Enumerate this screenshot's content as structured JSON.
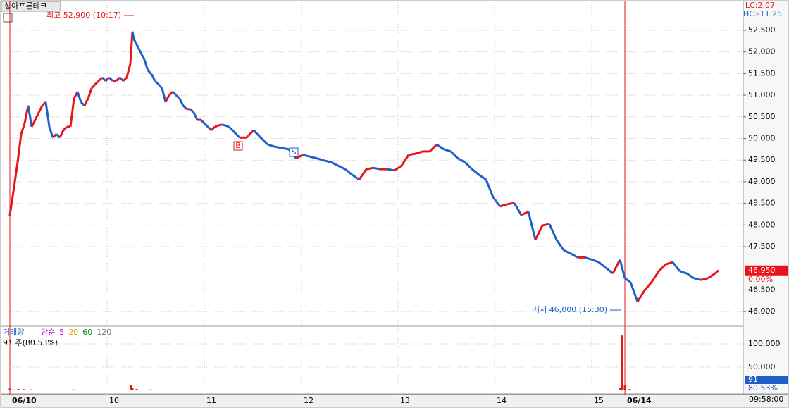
{
  "chart_data": [
    {
      "type": "line",
      "title": "상아프론테크",
      "lc_label": "LC:2.07",
      "hc_label": "HC:-11.25",
      "annotations": [
        "최고 52,900 (10:17)",
        "최저 46,000 (15:30)"
      ],
      "signals": [
        "B",
        "S"
      ],
      "last_price": {
        "value": 46950,
        "label": "46,950"
      },
      "change_label": "0.00%",
      "up_color": "#e8141a",
      "down_color": "#1f5fc8",
      "x": [
        0,
        6,
        11,
        16,
        21,
        26,
        31,
        36,
        41,
        46,
        51,
        56,
        61,
        66,
        71,
        76,
        81,
        86,
        91,
        96,
        101,
        106,
        111,
        116,
        121,
        126,
        131,
        136,
        141,
        146,
        151,
        156,
        161,
        166,
        171,
        174,
        176,
        181,
        186,
        191,
        196,
        201,
        206,
        211,
        216,
        221,
        226,
        231,
        236,
        241,
        246,
        251,
        256,
        261,
        266,
        271,
        276,
        281,
        286,
        291,
        296,
        301,
        306,
        311,
        316,
        326,
        336,
        346,
        356,
        366,
        376,
        386,
        396,
        406,
        416,
        426,
        436,
        446,
        456,
        466,
        476,
        486,
        496,
        506,
        516,
        526,
        536,
        546,
        556,
        566,
        576,
        586,
        596,
        606,
        616,
        626,
        636,
        646,
        656,
        666,
        676,
        686,
        696,
        706,
        716,
        726,
        736,
        746,
        756,
        766,
        776,
        786,
        796,
        806,
        816,
        826,
        836,
        846,
        856,
        866,
        873,
        881,
        891,
        901,
        911,
        921,
        931,
        941,
        951,
        961,
        971,
        981,
        991,
        1001,
        1006
      ],
      "values": [
        48230,
        48880,
        49450,
        50100,
        50350,
        50760,
        50270,
        50430,
        50600,
        50760,
        50840,
        50270,
        50020,
        50100,
        50020,
        50190,
        50270,
        50270,
        50920,
        51080,
        50840,
        50760,
        50920,
        51160,
        51250,
        51330,
        51410,
        51330,
        51410,
        51330,
        51330,
        51410,
        51330,
        51410,
        51730,
        52470,
        52300,
        52140,
        51980,
        51820,
        51570,
        51490,
        51330,
        51250,
        51160,
        50840,
        51000,
        51080,
        51000,
        50920,
        50760,
        50680,
        50680,
        50600,
        50430,
        50430,
        50350,
        50270,
        50190,
        50270,
        50300,
        50320,
        50300,
        50270,
        50190,
        50020,
        50020,
        50190,
        50020,
        49860,
        49810,
        49780,
        49750,
        49540,
        49620,
        49580,
        49540,
        49490,
        49450,
        49370,
        49290,
        49160,
        49050,
        49290,
        49320,
        49290,
        49290,
        49260,
        49370,
        49620,
        49650,
        49700,
        49700,
        49860,
        49750,
        49700,
        49540,
        49450,
        49290,
        49160,
        49050,
        48640,
        48430,
        48480,
        48510,
        48230,
        48310,
        47660,
        47990,
        48020,
        47660,
        47420,
        47340,
        47250,
        47250,
        47200,
        47140,
        47010,
        46880,
        47200,
        46770,
        46680,
        46230,
        46490,
        46680,
        46930,
        47090,
        47140,
        46930,
        46880,
        46770,
        46730,
        46770,
        46880,
        46950
      ],
      "xlim": [
        0,
        1041
      ],
      "ylim": [
        45660,
        53200
      ],
      "yticks": [
        {
          "value": 46000,
          "label": "46,000"
        },
        {
          "value": 46500,
          "label": "46,500"
        },
        {
          "value": 47500,
          "label": "47,500"
        },
        {
          "value": 48000,
          "label": "48,000"
        },
        {
          "value": 48500,
          "label": "48,500"
        },
        {
          "value": 49000,
          "label": "49,000"
        },
        {
          "value": 49500,
          "label": "49,500"
        },
        {
          "value": 50000,
          "label": "50,000"
        },
        {
          "value": 50500,
          "label": "50,500"
        },
        {
          "value": 51000,
          "label": "51,000"
        },
        {
          "value": 51500,
          "label": "51,500"
        },
        {
          "value": 52000,
          "label": "52,000"
        },
        {
          "value": 52500,
          "label": "52,500"
        }
      ],
      "xticks": [
        {
          "value": 0,
          "label": "06/10"
        },
        {
          "value": 138,
          "label": "10"
        },
        {
          "value": 276,
          "label": "11"
        },
        {
          "value": 414,
          "label": "12"
        },
        {
          "value": 551,
          "label": "13"
        },
        {
          "value": 688,
          "label": "14"
        },
        {
          "value": 826,
          "label": "15"
        },
        {
          "value": 873,
          "label": "06/14"
        }
      ],
      "grid": true
    },
    {
      "type": "bar",
      "title": "거래량",
      "ma_labels": [
        "단순",
        "5",
        "20",
        "60",
        "120"
      ],
      "ma_colors": [
        "#c000c0",
        "#c000c0",
        "#e0a000",
        "#109010",
        "#707070"
      ],
      "note": "91 주(80.53%)",
      "last_volume": 91,
      "last_volume_ratio": "80.53%",
      "time_label": "09:58:00",
      "color": "#e8141a",
      "x": [
        0,
        5,
        12,
        20,
        30,
        45,
        60,
        90,
        100,
        120,
        150,
        172,
        174,
        180,
        200,
        250,
        300,
        400,
        500,
        600,
        700,
        780,
        866,
        869,
        873,
        880,
        900,
        950,
        1000
      ],
      "values": [
        4000,
        2000,
        3000,
        2500,
        2000,
        1500,
        1500,
        2000,
        1500,
        1500,
        1200,
        12000,
        6000,
        3000,
        2000,
        1500,
        1200,
        1000,
        1000,
        1000,
        1500,
        1500,
        5000,
        118000,
        12000,
        3000,
        1500,
        1000,
        800
      ],
      "xlim": [
        0,
        1041
      ],
      "ylim": [
        0,
        137900
      ],
      "yticks": [
        {
          "value": 50000,
          "label": "50,000"
        },
        {
          "value": 100000,
          "label": "100,000"
        }
      ]
    }
  ]
}
